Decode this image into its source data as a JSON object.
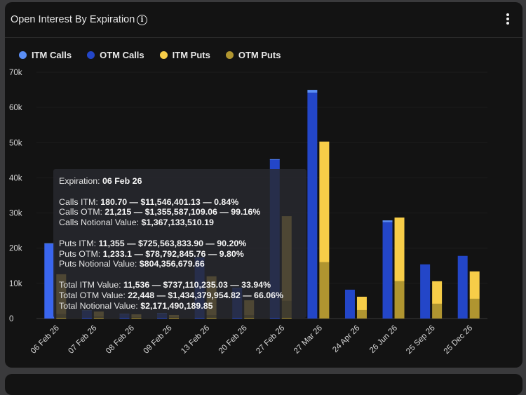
{
  "header": {
    "title": "Open Interest By Expiration",
    "info_icon": "info-circle-icon",
    "menu_icon": "more-vertical-icon"
  },
  "legend": [
    {
      "label": "ITM Calls",
      "color": "#5b8ef5"
    },
    {
      "label": "OTM Calls",
      "color": "#2346c8"
    },
    {
      "label": "ITM Puts",
      "color": "#f7cd48"
    },
    {
      "label": "OTM Puts",
      "color": "#b09530"
    }
  ],
  "tooltip": {
    "expiration_label": "Expiration: ",
    "expiration_value": "06 Feb 26",
    "rows": [
      {
        "label": "Calls ITM: ",
        "value": "180.70 — $11,546,401.13 — 0.84%"
      },
      {
        "label": "Calls OTM: ",
        "value": "21,215 — $1,355,587,109.06 — 99.16%"
      },
      {
        "label": "Calls Notional Value: ",
        "value": "$1,367,133,510.19"
      },
      {
        "label": "Puts ITM: ",
        "value": "11,355 — $725,563,833.90 — 90.20%"
      },
      {
        "label": "Puts OTM: ",
        "value": "1,233.1 — $78,792,845.76 — 9.80%"
      },
      {
        "label": "Puts Notional Value: ",
        "value": "$804,356,679.66"
      },
      {
        "label": "Total ITM Value: ",
        "value": "11,536 — $737,110,235.03 — 33.94%"
      },
      {
        "label": "Total OTM Value: ",
        "value": "22,448 — $1,434,379,954.82 — 66.06%"
      },
      {
        "label": "Total Notional Value: ",
        "value": "$2,171,490,189.85"
      }
    ]
  },
  "chart_data": {
    "type": "bar",
    "stacked": true,
    "title": "Open Interest By Expiration",
    "xlabel": "",
    "ylabel": "",
    "ylim": [
      0,
      70000
    ],
    "yticks": [
      0,
      10000,
      20000,
      30000,
      40000,
      50000,
      60000,
      70000
    ],
    "ytick_labels": [
      "0",
      "10k",
      "20k",
      "30k",
      "40k",
      "50k",
      "60k",
      "70k"
    ],
    "grid": true,
    "legend_position": "top-left",
    "highlighted_category": "06 Feb 26",
    "categories": [
      "06 Feb 26",
      "07 Feb 26",
      "08 Feb 26",
      "09 Feb 26",
      "13 Feb 26",
      "20 Feb 26",
      "27 Feb 26",
      "27 Mar 26",
      "24 Apr 26",
      "26 Jun 26",
      "25 Sep 26",
      "25 Dec 26"
    ],
    "series": [
      {
        "name": "OTM Calls",
        "stack": "calls",
        "color": "#2346c8",
        "values": [
          21215,
          2300,
          1350,
          1550,
          17300,
          8700,
          45200,
          64200,
          8200,
          27400,
          15400,
          17800
        ]
      },
      {
        "name": "ITM Calls",
        "stack": "calls",
        "color": "#5b8ef5",
        "values": [
          180.7,
          50,
          30,
          30,
          100,
          80,
          100,
          800,
          0,
          500,
          0,
          0
        ]
      },
      {
        "name": "OTM Puts",
        "stack": "puts",
        "color": "#b09530",
        "values": [
          1233.1,
          600,
          400,
          400,
          1000,
          1000,
          5000,
          16000,
          2400,
          10600,
          4200,
          5600
        ]
      },
      {
        "name": "ITM Puts",
        "stack": "puts",
        "color": "#f7cd48",
        "values": [
          11355,
          1400,
          800,
          600,
          11000,
          4200,
          24100,
          34300,
          3800,
          18100,
          6400,
          7800
        ]
      }
    ]
  }
}
